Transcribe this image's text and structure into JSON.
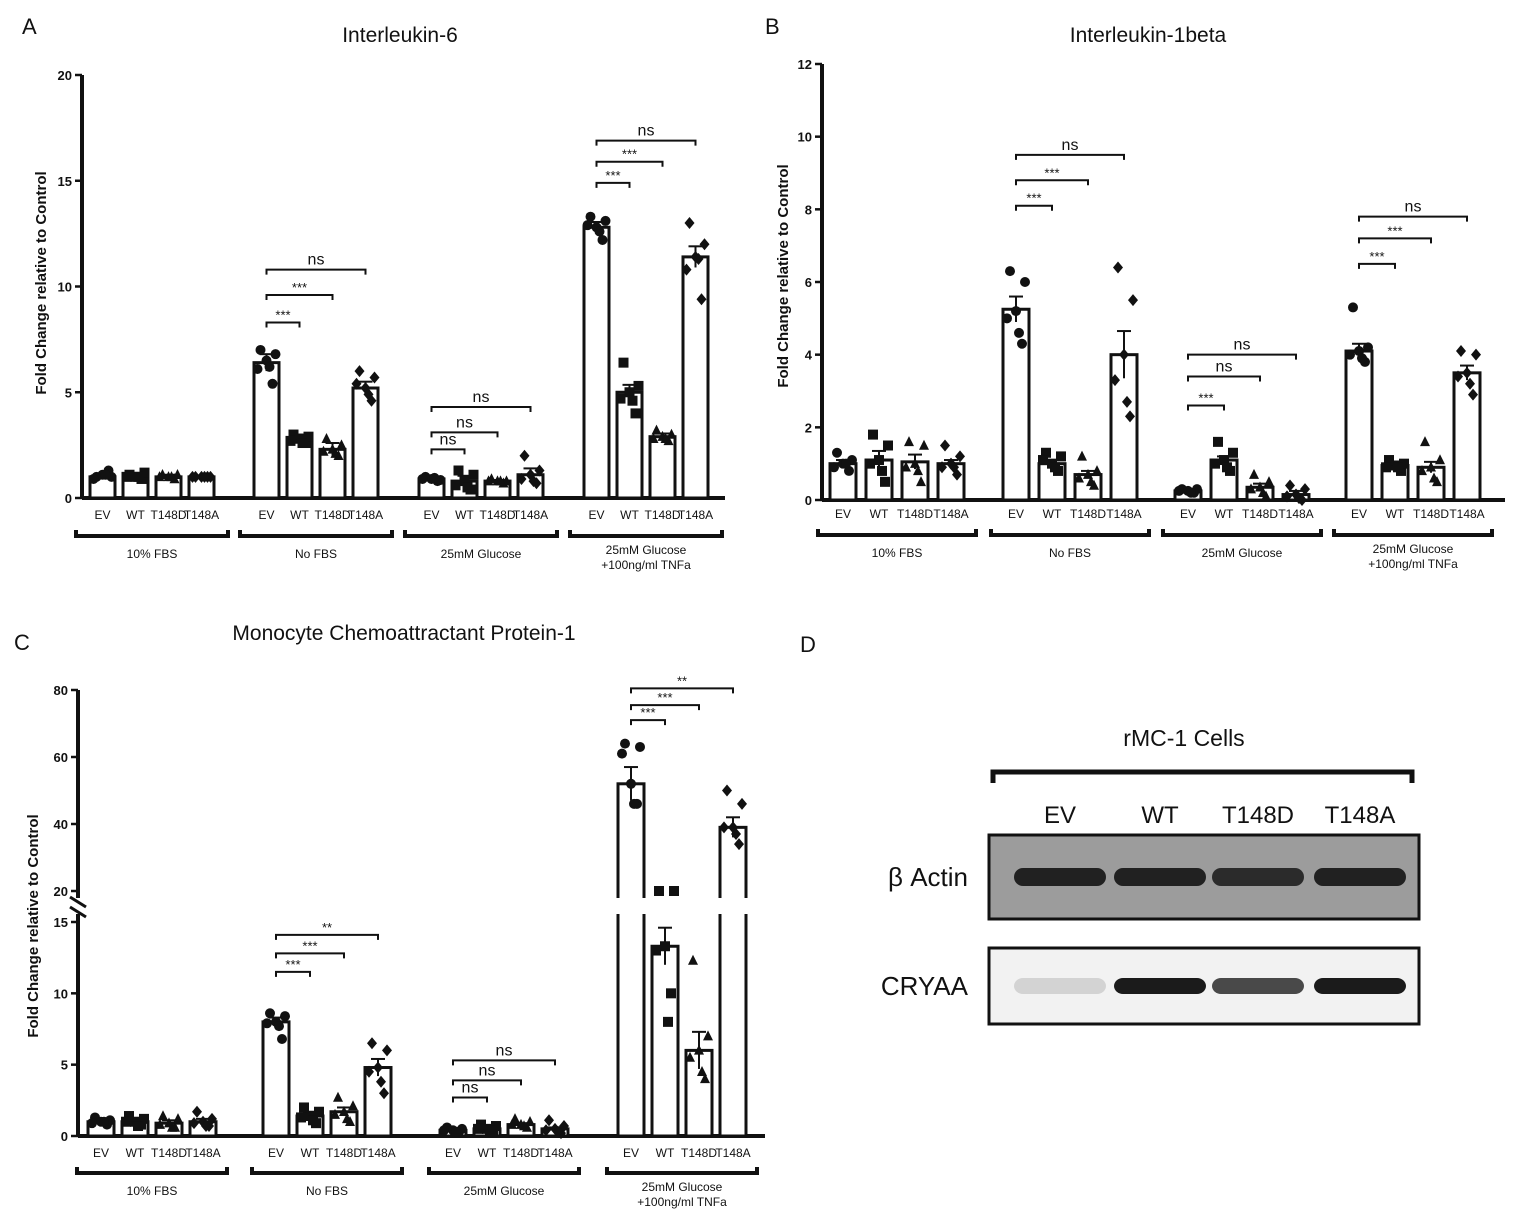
{
  "panel_letters": {
    "a": "A",
    "b": "B",
    "c": "C",
    "d": "D"
  },
  "axis_label": "Fold Change relative to Control",
  "bar_labels": [
    "EV",
    "WT",
    "T148D",
    "T148A"
  ],
  "group_labels": [
    "10% FBS",
    "No FBS",
    "25mM Glucose",
    "25mM Glucose",
    "+100ng/ml TNFa"
  ],
  "chart_data": [
    {
      "id": "A",
      "type": "bar",
      "title": "Interleukin-6",
      "ylabel": "Fold Change relative to Control",
      "ylim": [
        0,
        20
      ],
      "yticks": [
        0,
        5,
        10,
        15,
        20
      ],
      "groups": [
        "10% FBS",
        "No FBS",
        "25mM Glucose",
        "25mM Glucose +100ng/ml TNFa"
      ],
      "categories": [
        "EV",
        "WT",
        "T148D",
        "T148A"
      ],
      "values": [
        [
          1.0,
          1.0,
          1.0,
          1.0
        ],
        [
          6.4,
          2.8,
          2.3,
          5.2
        ],
        [
          0.9,
          0.8,
          0.8,
          1.1
        ],
        [
          12.8,
          5.0,
          2.9,
          11.4
        ]
      ],
      "sem": [
        [
          0.1,
          0.1,
          0.1,
          0.05
        ],
        [
          0.4,
          0.2,
          0.3,
          0.3
        ],
        [
          0.05,
          0.25,
          0.05,
          0.3
        ],
        [
          0.25,
          0.35,
          0.15,
          0.5
        ]
      ],
      "points": [
        [
          [
            1.1,
            1.0,
            1.3,
            0.9,
            1.0,
            1.1
          ],
          [
            1.0,
            1.1,
            0.9,
            1.0,
            1.2,
            1.0
          ],
          [
            1.0,
            1.1,
            0.9,
            1.0,
            1.1,
            1.0
          ],
          [
            1.0,
            1.0,
            1.0,
            1.0,
            1.0,
            1.0
          ]
        ],
        [
          [
            6.5,
            7.0,
            5.4,
            6.1,
            6.8,
            6.2
          ],
          [
            2.8,
            3.0,
            2.6,
            2.7,
            2.9,
            2.6
          ],
          [
            2.3,
            2.8,
            2.0,
            2.2,
            2.5,
            2.1
          ],
          [
            5.2,
            6.0,
            4.6,
            5.4,
            5.7,
            4.9
          ]
        ],
        [
          [
            0.9,
            1.0,
            0.8,
            0.9,
            0.85,
            0.95
          ],
          [
            0.8,
            1.3,
            0.4,
            0.6,
            1.1,
            0.5
          ],
          [
            0.8,
            0.9,
            0.7,
            0.8,
            0.8,
            0.8
          ],
          [
            1.1,
            2.0,
            0.7,
            0.9,
            1.3,
            0.8
          ]
        ],
        [
          [
            12.8,
            13.3,
            12.2,
            12.9,
            13.1,
            12.6
          ],
          [
            5.0,
            6.4,
            4.0,
            4.7,
            5.3,
            4.6
          ],
          [
            2.9,
            3.2,
            2.7,
            2.8,
            3.0,
            2.8
          ],
          [
            11.4,
            13.0,
            9.4,
            10.8,
            12.0,
            11.3
          ]
        ]
      ],
      "markers": [
        "circle",
        "square",
        "triangle",
        "diamond"
      ],
      "annotations": [
        {
          "group": 1,
          "labels": [
            "***",
            "***",
            "ns"
          ],
          "levels": [
            8.3,
            9.6,
            10.8
          ]
        },
        {
          "group": 2,
          "labels": [
            "ns",
            "ns",
            "ns"
          ],
          "levels": [
            2.3,
            3.1,
            4.3
          ]
        },
        {
          "group": 3,
          "labels": [
            "***",
            "***",
            "ns"
          ],
          "levels": [
            14.9,
            15.9,
            16.9
          ]
        }
      ]
    },
    {
      "id": "B",
      "type": "bar",
      "title": "Interleukin-1beta",
      "ylabel": "Fold Change relative to Control",
      "ylim": [
        0,
        12
      ],
      "yticks": [
        0,
        2,
        4,
        6,
        8,
        10,
        12
      ],
      "groups": [
        "10% FBS",
        "No FBS",
        "25mM Glucose",
        "25mM Glucose +100ng/ml TNFa"
      ],
      "categories": [
        "EV",
        "WT",
        "T148D",
        "T148A"
      ],
      "values": [
        [
          1.0,
          1.1,
          1.05,
          1.0
        ],
        [
          5.25,
          1.0,
          0.7,
          4.0
        ],
        [
          0.25,
          1.1,
          0.35,
          0.15
        ],
        [
          4.1,
          0.95,
          0.9,
          3.5
        ]
      ],
      "sem": [
        [
          0.1,
          0.25,
          0.2,
          0.1
        ],
        [
          0.35,
          0.1,
          0.1,
          0.65
        ],
        [
          0.05,
          0.1,
          0.1,
          0.1
        ],
        [
          0.2,
          0.05,
          0.15,
          0.2
        ]
      ],
      "points": [
        [
          [
            1.0,
            1.3,
            0.8,
            0.9,
            1.1,
            1.0
          ],
          [
            1.1,
            1.8,
            0.5,
            1.0,
            1.5,
            0.8
          ],
          [
            1.0,
            1.6,
            0.5,
            0.9,
            1.5,
            0.8
          ],
          [
            1.0,
            1.5,
            0.7,
            0.9,
            1.2,
            0.9
          ]
        ],
        [
          [
            5.2,
            6.3,
            4.3,
            5.0,
            6.0,
            4.6
          ],
          [
            1.0,
            1.3,
            0.8,
            1.1,
            1.2,
            0.9
          ],
          [
            0.7,
            1.2,
            0.4,
            0.6,
            0.8,
            0.5
          ],
          [
            4.0,
            6.4,
            2.3,
            3.3,
            5.5,
            2.7
          ]
        ],
        [
          [
            0.25,
            0.3,
            0.2,
            0.25,
            0.3,
            0.2
          ],
          [
            1.1,
            1.6,
            0.8,
            1.0,
            1.3,
            0.9
          ],
          [
            0.35,
            0.7,
            0.1,
            0.3,
            0.5,
            0.2
          ],
          [
            0.15,
            0.4,
            0.0,
            0.1,
            0.3,
            0.05
          ]
        ],
        [
          [
            4.1,
            5.3,
            3.8,
            4.0,
            4.2,
            3.9
          ],
          [
            0.95,
            1.1,
            0.8,
            0.9,
            1.0,
            0.9
          ],
          [
            0.9,
            1.6,
            0.5,
            0.8,
            1.1,
            0.6
          ],
          [
            3.5,
            4.1,
            2.9,
            3.4,
            4.0,
            3.2
          ]
        ]
      ],
      "markers": [
        "circle",
        "square",
        "triangle",
        "diamond"
      ],
      "annotations": [
        {
          "group": 1,
          "labels": [
            "***",
            "***",
            "ns"
          ],
          "levels": [
            8.1,
            8.8,
            9.5
          ]
        },
        {
          "group": 2,
          "labels": [
            "***",
            "ns",
            "ns"
          ],
          "levels": [
            2.6,
            3.4,
            4.0
          ]
        },
        {
          "group": 3,
          "labels": [
            "***",
            "***",
            "ns"
          ],
          "levels": [
            6.5,
            7.2,
            7.8
          ]
        }
      ]
    },
    {
      "id": "C",
      "type": "bar",
      "title": "Monocyte Chemoattractant Protein-1",
      "ylabel": "Fold Change relative to Control",
      "broken_axis": {
        "lower": [
          0,
          15
        ],
        "upper": [
          15,
          80
        ]
      },
      "yticks": [
        0,
        5,
        10,
        15,
        20,
        40,
        60,
        80
      ],
      "groups": [
        "10% FBS",
        "No FBS",
        "25mM Glucose",
        "25mM Glucose +100ng/ml TNFa"
      ],
      "categories": [
        "EV",
        "WT",
        "T148D",
        "T148A"
      ],
      "values": [
        [
          1.0,
          1.0,
          0.9,
          1.0
        ],
        [
          8.0,
          1.4,
          1.7,
          4.8
        ],
        [
          0.4,
          0.5,
          0.8,
          0.5
        ],
        [
          52.0,
          13.3,
          6.0,
          39.0
        ]
      ],
      "sem": [
        [
          0.1,
          0.1,
          0.2,
          0.2
        ],
        [
          0.3,
          0.3,
          0.3,
          0.6
        ],
        [
          0.05,
          0.1,
          0.1,
          0.1
        ],
        [
          5.0,
          1.3,
          1.3,
          3.0
        ]
      ],
      "points": [
        [
          [
            1.0,
            1.3,
            0.8,
            0.9,
            1.1,
            1.0
          ],
          [
            1.0,
            1.4,
            0.8,
            1.0,
            1.2,
            0.7
          ],
          [
            0.9,
            1.4,
            0.6,
            0.8,
            1.2,
            0.6
          ],
          [
            1.0,
            1.7,
            0.7,
            0.9,
            1.2,
            0.7
          ]
        ],
        [
          [
            8.0,
            8.6,
            6.8,
            7.9,
            8.4,
            7.7
          ],
          [
            1.4,
            2.0,
            0.9,
            1.3,
            1.7,
            1.1
          ],
          [
            1.7,
            2.7,
            1.0,
            1.5,
            2.1,
            1.2
          ],
          [
            4.8,
            6.5,
            3.0,
            4.5,
            6.0,
            3.8
          ]
        ],
        [
          [
            0.4,
            0.6,
            0.3,
            0.4,
            0.5,
            0.3
          ],
          [
            0.5,
            0.8,
            0.3,
            0.5,
            0.7,
            0.4
          ],
          [
            0.8,
            1.2,
            0.6,
            0.8,
            1.0,
            0.7
          ],
          [
            0.5,
            1.1,
            0.2,
            0.4,
            0.7,
            0.3
          ]
        ],
        [
          [
            52.0,
            64.0,
            46.0,
            61.0,
            63.0,
            46.0
          ],
          [
            13.3,
            16.0,
            10.0,
            13.0,
            15.5,
            8.0
          ],
          [
            6.0,
            12.3,
            4.0,
            5.5,
            7.0,
            4.5
          ],
          [
            39.0,
            50.0,
            34.0,
            39.0,
            46.0,
            37.0
          ]
        ]
      ],
      "markers": [
        "circle",
        "square",
        "triangle",
        "diamond"
      ],
      "annotations": [
        {
          "group": 1,
          "labels": [
            "***",
            "***",
            "**"
          ],
          "levels": [
            11.5,
            12.8,
            14.1
          ]
        },
        {
          "group": 2,
          "labels": [
            "ns",
            "ns",
            "ns"
          ],
          "levels": [
            2.7,
            3.9,
            5.3
          ]
        },
        {
          "group": 3,
          "labels": [
            "***",
            "***",
            "**"
          ],
          "levels": [
            71.0,
            75.5,
            80.5
          ]
        }
      ]
    }
  ],
  "blot": {
    "title": "rMC-1 Cells",
    "lanes": [
      "EV",
      "WT",
      "T148D",
      "T148A"
    ],
    "rows": [
      {
        "label": "β Actin",
        "intensities": [
          0.95,
          0.95,
          0.9,
          0.95
        ]
      },
      {
        "label": "CRYAA",
        "intensities": [
          0.12,
          1.0,
          0.78,
          1.0
        ]
      }
    ]
  }
}
